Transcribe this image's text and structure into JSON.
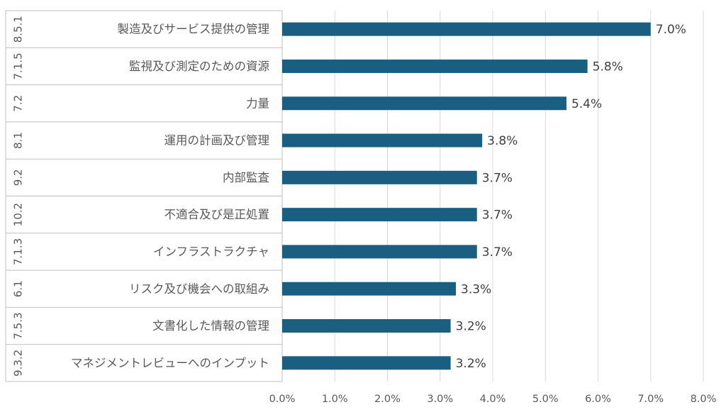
{
  "chart_data": {
    "type": "bar",
    "orientation": "horizontal",
    "title": "",
    "xlabel": "",
    "ylabel": "",
    "xlim": [
      0,
      8.0
    ],
    "grid": true,
    "legend": "none",
    "bar_color": "#1a5f82",
    "x_ticks": [
      "0.0%",
      "1.0%",
      "2.0%",
      "3.0%",
      "4.0%",
      "5.0%",
      "6.0%",
      "7.0%",
      "8.0%"
    ],
    "groups": [
      "8.5.1",
      "7.1.5",
      "7.2",
      "8.1",
      "9.2",
      "10.2",
      "7.1.3",
      "6.1",
      "7.5.3",
      "9.3.2"
    ],
    "categories": [
      "製造及びサービス提供の管理",
      "監視及び測定のための資源",
      "力量",
      "運用の計画及び管理",
      "内部監査",
      "不適合及び是正処置",
      "インフラストラクチャ",
      "リスク及び機会への取組み",
      "文書化した情報の管理",
      "マネジメントレビューへのインプット"
    ],
    "values": [
      7.0,
      5.8,
      5.4,
      3.8,
      3.7,
      3.7,
      3.7,
      3.3,
      3.2,
      3.2
    ],
    "value_labels": [
      "7.0%",
      "5.8%",
      "5.4%",
      "3.8%",
      "3.7%",
      "3.7%",
      "3.7%",
      "3.3%",
      "3.2%",
      "3.2%"
    ]
  }
}
